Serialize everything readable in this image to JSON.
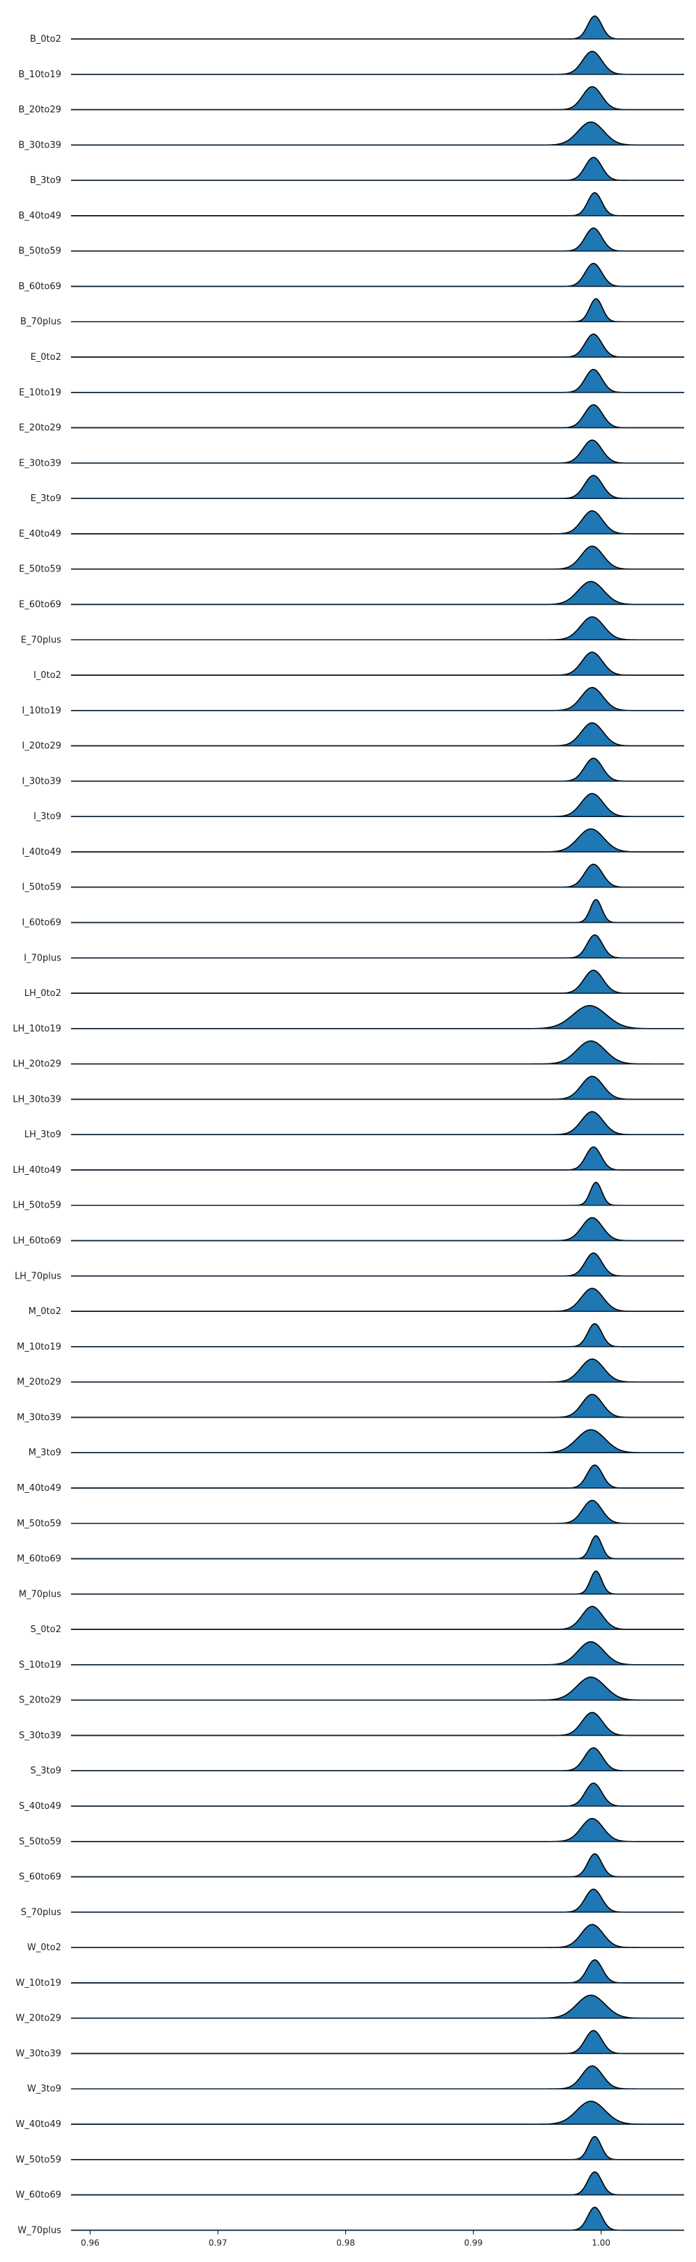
{
  "chart_data": {
    "type": "ridgeline",
    "title": "",
    "xlabel": "",
    "ylabel": "",
    "xlim": [
      0.9585,
      1.0065
    ],
    "xticks": [
      0.96,
      0.97,
      0.98,
      0.99,
      1.0
    ],
    "xtick_labels": [
      "0.96",
      "0.97",
      "0.98",
      "0.99",
      "1.00"
    ],
    "fill_color": "#1f77b4",
    "line_color": "#000000",
    "grid": false,
    "legend": "none",
    "series": [
      {
        "name": "B_0to2",
        "peak_x": 0.9995,
        "spread": 0.00055
      },
      {
        "name": "B_10to19",
        "peak_x": 0.9993,
        "spread": 0.00075
      },
      {
        "name": "B_20to29",
        "peak_x": 0.9993,
        "spread": 0.00075
      },
      {
        "name": "B_30to39",
        "peak_x": 0.9992,
        "spread": 0.001
      },
      {
        "name": "B_3to9",
        "peak_x": 0.9994,
        "spread": 0.00065
      },
      {
        "name": "B_40to49",
        "peak_x": 0.9995,
        "spread": 0.00055
      },
      {
        "name": "B_50to59",
        "peak_x": 0.9994,
        "spread": 0.00065
      },
      {
        "name": "B_60to69",
        "peak_x": 0.9994,
        "spread": 0.00065
      },
      {
        "name": "B_70plus",
        "peak_x": 0.9996,
        "spread": 0.0005
      },
      {
        "name": "E_0to2",
        "peak_x": 0.9994,
        "spread": 0.00065
      },
      {
        "name": "E_10to19",
        "peak_x": 0.9994,
        "spread": 0.00065
      },
      {
        "name": "E_20to29",
        "peak_x": 0.9994,
        "spread": 0.0007
      },
      {
        "name": "E_30to39",
        "peak_x": 0.9993,
        "spread": 0.00075
      },
      {
        "name": "E_3to9",
        "peak_x": 0.9994,
        "spread": 0.0007
      },
      {
        "name": "E_40to49",
        "peak_x": 0.9993,
        "spread": 0.0008
      },
      {
        "name": "E_50to59",
        "peak_x": 0.9993,
        "spread": 0.00085
      },
      {
        "name": "E_60to69",
        "peak_x": 0.9992,
        "spread": 0.001
      },
      {
        "name": "E_70plus",
        "peak_x": 0.9993,
        "spread": 0.0009
      },
      {
        "name": "I_0to2",
        "peak_x": 0.9993,
        "spread": 0.0008
      },
      {
        "name": "I_10to19",
        "peak_x": 0.9993,
        "spread": 0.00085
      },
      {
        "name": "I_20to29",
        "peak_x": 0.9993,
        "spread": 0.00085
      },
      {
        "name": "I_30to39",
        "peak_x": 0.9994,
        "spread": 0.0007
      },
      {
        "name": "I_3to9",
        "peak_x": 0.9993,
        "spread": 0.00085
      },
      {
        "name": "I_40to49",
        "peak_x": 0.9992,
        "spread": 0.001
      },
      {
        "name": "I_50to59",
        "peak_x": 0.9994,
        "spread": 0.0007
      },
      {
        "name": "I_60to69",
        "peak_x": 0.9996,
        "spread": 0.00045
      },
      {
        "name": "I_70plus",
        "peak_x": 0.9995,
        "spread": 0.0006
      },
      {
        "name": "LH_0to2",
        "peak_x": 0.9994,
        "spread": 0.00075
      },
      {
        "name": "LH_10to19",
        "peak_x": 0.9991,
        "spread": 0.0013
      },
      {
        "name": "LH_20to29",
        "peak_x": 0.9992,
        "spread": 0.0011
      },
      {
        "name": "LH_30to39",
        "peak_x": 0.9993,
        "spread": 0.00085
      },
      {
        "name": "LH_3to9",
        "peak_x": 0.9993,
        "spread": 0.00085
      },
      {
        "name": "LH_40to49",
        "peak_x": 0.9994,
        "spread": 0.0006
      },
      {
        "name": "LH_50to59",
        "peak_x": 0.9996,
        "spread": 0.00045
      },
      {
        "name": "LH_60to69",
        "peak_x": 0.9993,
        "spread": 0.0008
      },
      {
        "name": "LH_70plus",
        "peak_x": 0.9994,
        "spread": 0.00065
      },
      {
        "name": "M_0to2",
        "peak_x": 0.9993,
        "spread": 0.00085
      },
      {
        "name": "M_10to19",
        "peak_x": 0.9995,
        "spread": 0.00055
      },
      {
        "name": "M_20to29",
        "peak_x": 0.9993,
        "spread": 0.0009
      },
      {
        "name": "M_30to39",
        "peak_x": 0.9993,
        "spread": 0.0008
      },
      {
        "name": "M_3to9",
        "peak_x": 0.9992,
        "spread": 0.0011
      },
      {
        "name": "M_40to49",
        "peak_x": 0.9995,
        "spread": 0.0006
      },
      {
        "name": "M_50to59",
        "peak_x": 0.9993,
        "spread": 0.00075
      },
      {
        "name": "M_60to69",
        "peak_x": 0.9996,
        "spread": 0.00045
      },
      {
        "name": "M_70plus",
        "peak_x": 0.9996,
        "spread": 0.00045
      },
      {
        "name": "S_0to2",
        "peak_x": 0.9993,
        "spread": 0.0008
      },
      {
        "name": "S_10to19",
        "peak_x": 0.9992,
        "spread": 0.001
      },
      {
        "name": "S_20to29",
        "peak_x": 0.9992,
        "spread": 0.0011
      },
      {
        "name": "S_30to39",
        "peak_x": 0.9993,
        "spread": 0.0008
      },
      {
        "name": "S_3to9",
        "peak_x": 0.9994,
        "spread": 0.0007
      },
      {
        "name": "S_40to49",
        "peak_x": 0.9994,
        "spread": 0.00065
      },
      {
        "name": "S_50to59",
        "peak_x": 0.9993,
        "spread": 0.00085
      },
      {
        "name": "S_60to69",
        "peak_x": 0.9995,
        "spread": 0.00055
      },
      {
        "name": "S_70plus",
        "peak_x": 0.9994,
        "spread": 0.00065
      },
      {
        "name": "W_0to2",
        "peak_x": 0.9993,
        "spread": 0.00085
      },
      {
        "name": "W_10to19",
        "peak_x": 0.9995,
        "spread": 0.0006
      },
      {
        "name": "W_20to29",
        "peak_x": 0.9992,
        "spread": 0.0011
      },
      {
        "name": "W_30to39",
        "peak_x": 0.9994,
        "spread": 0.00065
      },
      {
        "name": "W_3to9",
        "peak_x": 0.9993,
        "spread": 0.0008
      },
      {
        "name": "W_40to49",
        "peak_x": 0.9992,
        "spread": 0.0011
      },
      {
        "name": "W_50to59",
        "peak_x": 0.9995,
        "spread": 0.0005
      },
      {
        "name": "W_60to69",
        "peak_x": 0.9995,
        "spread": 0.00055
      },
      {
        "name": "W_70plus",
        "peak_x": 0.9995,
        "spread": 0.00055
      }
    ]
  }
}
